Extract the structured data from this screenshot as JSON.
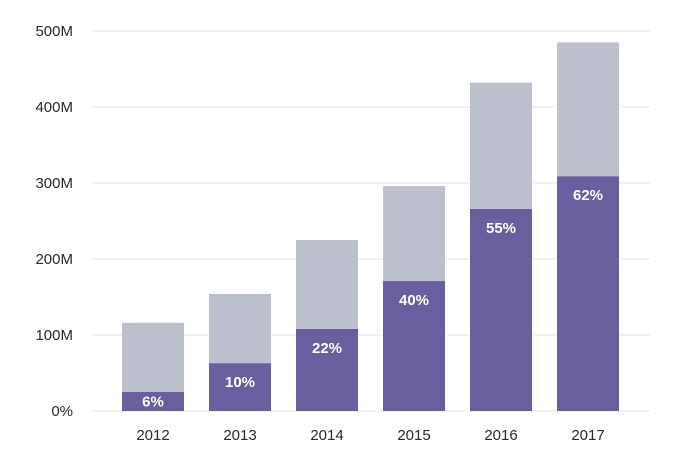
{
  "chart_data": {
    "type": "bar",
    "stacked": true,
    "categories": [
      "2012",
      "2013",
      "2014",
      "2015",
      "2016",
      "2017"
    ],
    "series": [
      {
        "values": [
          25,
          63,
          108,
          171,
          266,
          309
        ],
        "color": "#6a5f9e"
      },
      {
        "values": [
          91,
          91,
          117,
          125,
          166,
          176
        ],
        "color": "#bcbfcc"
      }
    ],
    "totals": [
      116,
      154,
      225,
      296,
      432,
      485
    ],
    "bar_labels": [
      "6%",
      "10%",
      "22%",
      "40%",
      "55%",
      "62%"
    ],
    "y_ticks": [
      {
        "value": 0,
        "label": "0%"
      },
      {
        "value": 100,
        "label": "100M"
      },
      {
        "value": 200,
        "label": "200M"
      },
      {
        "value": 300,
        "label": "300M"
      },
      {
        "value": 400,
        "label": "400M"
      },
      {
        "value": 500,
        "label": "500M"
      }
    ],
    "ylim": [
      0,
      500
    ],
    "grid": true,
    "title": "",
    "xlabel": "",
    "ylabel": ""
  }
}
